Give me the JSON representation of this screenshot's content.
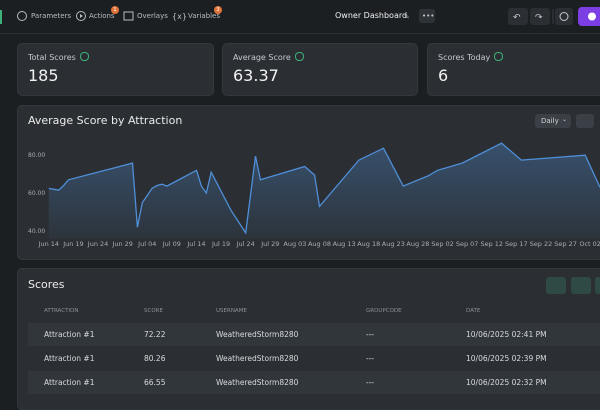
{
  "toolbar": {
    "items": [
      "Parameters",
      "Actions",
      "Overlays",
      "Variables"
    ],
    "badges": {
      "actions": "1",
      "variables": "3"
    },
    "title": "Owner Dashboard"
  },
  "cards": [
    {
      "label": "Total Scores",
      "value": "185"
    },
    {
      "label": "Average Score",
      "value": "63.37"
    },
    {
      "label": "Scores Today",
      "value": "6"
    }
  ],
  "chart_data": {
    "type": "line",
    "title": "Average Score by Attraction",
    "range_select": "Daily",
    "color": "#4f8fd9",
    "x": [
      "Jun 14",
      "Jun 15",
      "Jun 16",
      "Jun 17",
      "Jun 18",
      "Jul 01",
      "Jul 02",
      "Jul 03",
      "Jul 05",
      "Jul 06",
      "Jul 07",
      "Jul 08",
      "Jul 14",
      "Jul 15",
      "Jul 16",
      "Jul 17",
      "Jul 21",
      "Jul 24",
      "Jul 26",
      "Jul 27",
      "Aug 05",
      "Aug 07",
      "Aug 08",
      "Aug 16",
      "Aug 21",
      "Aug 25",
      "Aug 30",
      "Sep 01",
      "Sep 06",
      "Sep 14",
      "Sep 18",
      "Oct 01",
      "Oct 04"
    ],
    "values": [
      62.5,
      62,
      61.5,
      64,
      67,
      75.8,
      42,
      55,
      62.6,
      64,
      64.7,
      63.7,
      72,
      63.7,
      60,
      71,
      51,
      39,
      79.5,
      67,
      74,
      69.5,
      53,
      77.4,
      83.7,
      63.7,
      69,
      72,
      75.8,
      86.3,
      77.4,
      80,
      63
    ],
    "xlim": [
      "Jun 12",
      "Oct 04"
    ],
    "xticks": [
      "Jun 14",
      "Jun 19",
      "Jun 24",
      "Jun 29",
      "Jul 04",
      "Jul 09",
      "Jul 14",
      "Jul 19",
      "Jul 24",
      "Jul 29",
      "Aug 03",
      "Aug 08",
      "Aug 13",
      "Aug 18",
      "Aug 23",
      "Aug 28",
      "Sep 02",
      "Sep 07",
      "Sep 12",
      "Sep 17",
      "Sep 22",
      "Sep 27",
      "Oct 02"
    ],
    "ylim": [
      36,
      88
    ],
    "yticks": [
      {
        "value": 40,
        "label": "40.00"
      },
      {
        "value": 60,
        "label": "60.00"
      },
      {
        "value": 80,
        "label": "80.00"
      }
    ]
  },
  "table": {
    "title": "Scores",
    "columns": [
      "ATTRACTION",
      "SCORE",
      "USERNAME",
      "GROUPCODE",
      "DATE"
    ],
    "rows": [
      [
        "Attraction #1",
        "72.22",
        "WeatheredStorm8280",
        "---",
        "10/06/2025 02:41 PM"
      ],
      [
        "Attraction #1",
        "80.26",
        "WeatheredStorm8280",
        "---",
        "10/06/2025 02:39 PM"
      ],
      [
        "Attraction #1",
        "66.55",
        "WeatheredStorm8280",
        "---",
        "10/06/2025 02:32 PM"
      ]
    ]
  }
}
